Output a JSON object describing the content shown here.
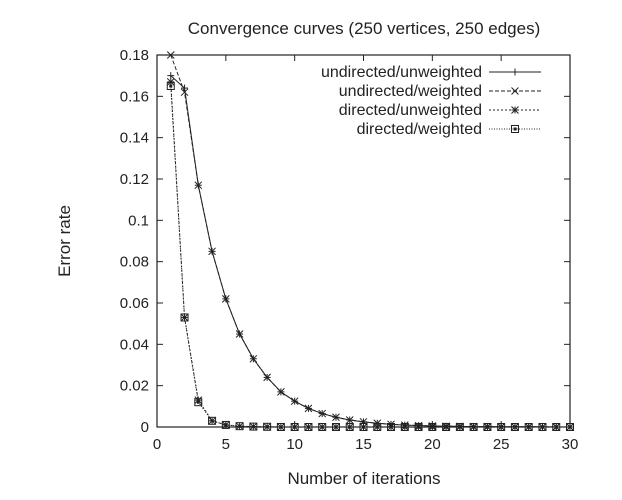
{
  "chart_data": {
    "type": "line",
    "title": "Convergence curves (250 vertices, 250 edges)",
    "xlabel": "Number of iterations",
    "ylabel": "Error rate",
    "xlim": [
      0,
      30
    ],
    "ylim": [
      0,
      0.18
    ],
    "xticks": [
      0,
      5,
      10,
      15,
      20,
      25,
      30
    ],
    "xtick_labels": [
      "0",
      "5",
      "10",
      "15",
      "20",
      "25",
      "30"
    ],
    "yticks": [
      0,
      0.02,
      0.04,
      0.06,
      0.08,
      0.1,
      0.12,
      0.14,
      0.16,
      0.18
    ],
    "ytick_labels": [
      "0",
      "0.02",
      "0.04",
      "0.06",
      "0.08",
      "0.1",
      "0.12",
      "0.14",
      "0.16",
      "0.18"
    ],
    "grid": false,
    "legend_position": "top-right",
    "x": [
      1,
      2,
      3,
      4,
      5,
      6,
      7,
      8,
      9,
      10,
      11,
      12,
      13,
      14,
      15,
      16,
      17,
      18,
      19,
      20,
      21,
      22,
      23,
      24,
      25,
      26,
      27,
      28,
      29,
      30
    ],
    "series": [
      {
        "name": "undirected/unweighted",
        "marker": "plus",
        "dash": "solid",
        "values": [
          0.17,
          0.164,
          0.117,
          0.085,
          0.062,
          0.045,
          0.033,
          0.024,
          0.017,
          0.0125,
          0.009,
          0.0065,
          0.0047,
          0.0034,
          0.0025,
          0.0018,
          0.0013,
          0.0009,
          0.0007,
          0.0005,
          0.0004,
          0.0003,
          0.0002,
          0.0002,
          0.0001,
          0.0001,
          0.0001,
          0.0001,
          0.0,
          0.0
        ]
      },
      {
        "name": "undirected/weighted",
        "marker": "cross",
        "dash": "dashed",
        "values": [
          0.18,
          0.162,
          0.117,
          0.085,
          0.062,
          0.045,
          0.033,
          0.024,
          0.017,
          0.0125,
          0.009,
          0.0065,
          0.0047,
          0.0034,
          0.0025,
          0.0018,
          0.0013,
          0.0009,
          0.0007,
          0.0005,
          0.0004,
          0.0003,
          0.0002,
          0.0002,
          0.0001,
          0.0001,
          0.0001,
          0.0001,
          0.0,
          0.0
        ]
      },
      {
        "name": "directed/unweighted",
        "marker": "star",
        "dash": "dotted",
        "values": [
          0.167,
          0.053,
          0.013,
          0.003,
          0.001,
          0.0004,
          0.0002,
          0.0001,
          0.0,
          0.0,
          0.0,
          0.0,
          0.0,
          0.0,
          0.0,
          0.0,
          0.0,
          0.0,
          0.0,
          0.0,
          0.0,
          0.0,
          0.0,
          0.0,
          0.0,
          0.0,
          0.0,
          0.0,
          0.0,
          0.0
        ]
      },
      {
        "name": "directed/weighted",
        "marker": "square",
        "dash": "fine-dotted",
        "values": [
          0.165,
          0.053,
          0.012,
          0.003,
          0.001,
          0.0004,
          0.0002,
          0.0001,
          0.0,
          0.0,
          0.0,
          0.0,
          0.0,
          0.0,
          0.0,
          0.0,
          0.0,
          0.0,
          0.0,
          0.0,
          0.0,
          0.0,
          0.0,
          0.0,
          0.0,
          0.0,
          0.0,
          0.0,
          0.0,
          0.0
        ]
      }
    ]
  }
}
